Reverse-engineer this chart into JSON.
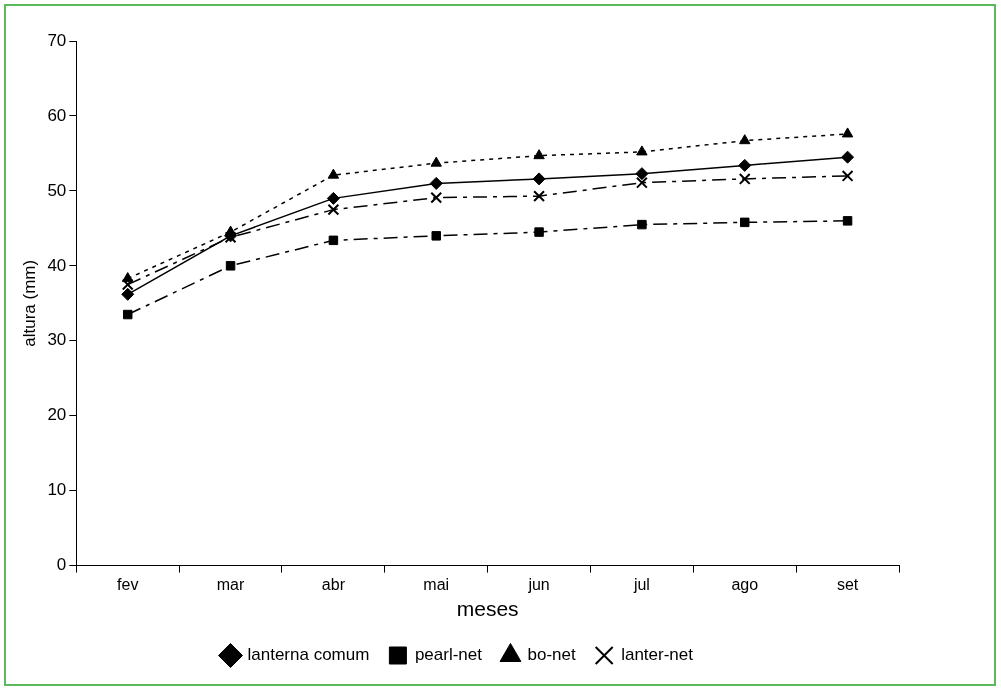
{
  "chart_data": {
    "type": "line",
    "xlabel": "meses",
    "ylabel": "altura (mm)",
    "categories": [
      "fev",
      "mar",
      "abr",
      "mai",
      "jun",
      "jul",
      "ago",
      "set"
    ],
    "ylim": [
      0,
      70
    ],
    "yticks": [
      0,
      10,
      20,
      30,
      40,
      50,
      60,
      70
    ],
    "grid": false,
    "legend": "bottom",
    "series": [
      {
        "name": "lanterna comum",
        "color": "#000000",
        "marker": "diamond",
        "line_style": "solid",
        "values": [
          36.2,
          44,
          49,
          51,
          51.6,
          52.3,
          53.4,
          54.5
        ]
      },
      {
        "name": "pearl-net",
        "color": "#000000",
        "marker": "square",
        "line_style": "dashed",
        "values": [
          33.5,
          40,
          43.4,
          44,
          44.5,
          45.5,
          45.8,
          46
        ]
      },
      {
        "name": "bo-net",
        "color": "#000000",
        "marker": "triangle",
        "line_style": "dotted",
        "values": [
          38.3,
          44.5,
          52.1,
          53.7,
          54.7,
          55.2,
          56.7,
          57.6
        ]
      },
      {
        "name": "lanter-net",
        "color": "#000000",
        "marker": "cross",
        "line_style": "dashed",
        "values": [
          37.5,
          43.8,
          47.5,
          49.1,
          49.3,
          51.1,
          51.6,
          52
        ]
      }
    ]
  }
}
